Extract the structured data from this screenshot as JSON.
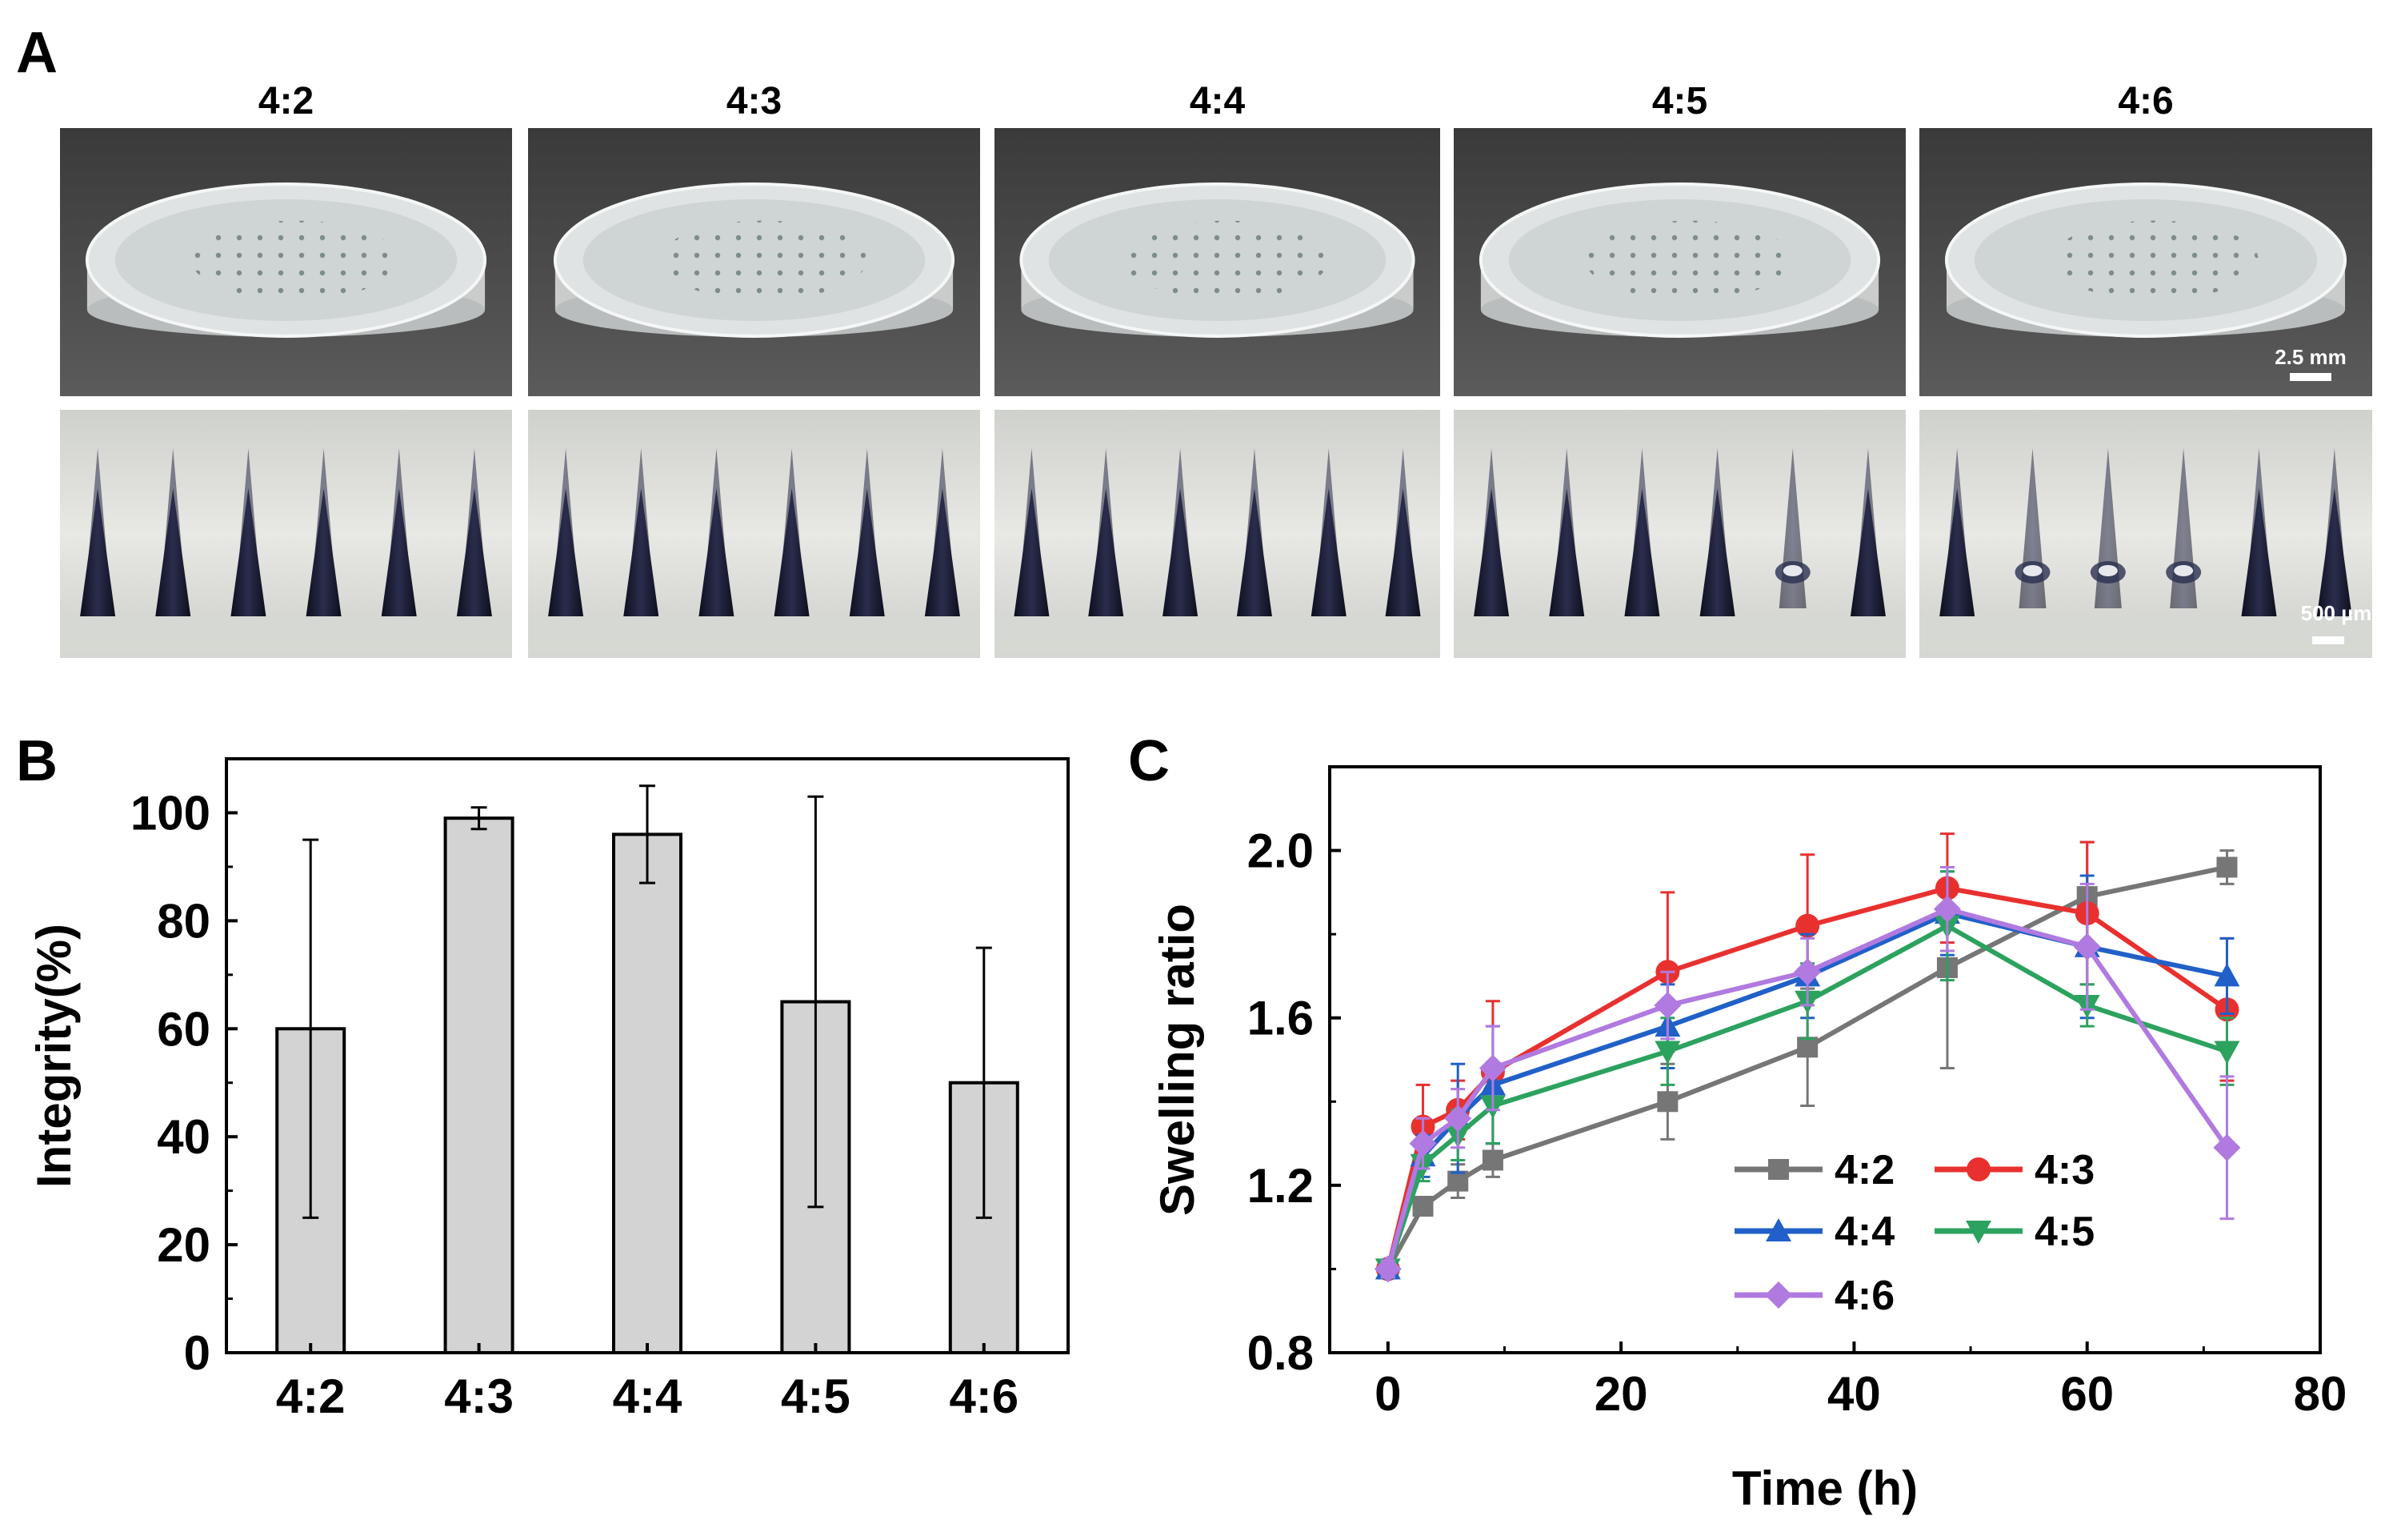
{
  "panel_labels": {
    "a": "A",
    "b": "B",
    "c": "C"
  },
  "photos": {
    "ratios": [
      "4:2",
      "4:3",
      "4:4",
      "4:5",
      "4:6"
    ],
    "top_row_description": "hydrogel patch side view",
    "bottom_row_description": "microneedle close-up",
    "scale_bar_top": "2.5 mm",
    "scale_bar_bottom": "500 µm"
  },
  "chart_data": [
    {
      "id": "B",
      "type": "bar",
      "title": "",
      "categories": [
        "4:2",
        "4:3",
        "4:4",
        "4:5",
        "4:6"
      ],
      "values": [
        60,
        99,
        96,
        65,
        50
      ],
      "errors": [
        35,
        2,
        9,
        38,
        25
      ],
      "xlabel": "",
      "ylabel": "Integrity(%)",
      "ylim": [
        0,
        110
      ],
      "yticks": [
        0,
        20,
        40,
        60,
        80,
        100
      ],
      "grid": false,
      "bar_color": "#d3d3d3"
    },
    {
      "id": "C",
      "type": "line",
      "title": "",
      "xlabel": "Time (h)",
      "ylabel": "Swelling ratio",
      "xlim": [
        -5,
        80
      ],
      "ylim": [
        0.8,
        2.2
      ],
      "xticks": [
        0,
        20,
        40,
        60,
        80
      ],
      "yticks": [
        0.8,
        1.2,
        1.6,
        2.0
      ],
      "x": [
        0,
        3,
        6,
        9,
        24,
        36,
        48,
        60,
        72
      ],
      "legend_position": "bottom-center",
      "series": [
        {
          "name": "4:2",
          "color": "#767676",
          "marker": "square",
          "values": [
            1.0,
            1.15,
            1.21,
            1.26,
            1.4,
            1.53,
            1.72,
            1.89,
            1.96
          ],
          "errors": [
            0.02,
            0.02,
            0.04,
            0.04,
            0.09,
            0.14,
            0.24,
            0.13,
            0.04
          ]
        },
        {
          "name": "4:3",
          "color": "#e8312f",
          "marker": "circle",
          "values": [
            1.0,
            1.34,
            1.38,
            1.47,
            1.71,
            1.82,
            1.91,
            1.85,
            1.62
          ],
          "errors": [
            0.02,
            0.1,
            0.07,
            0.17,
            0.19,
            0.17,
            0.13,
            0.17,
            0.17
          ]
        },
        {
          "name": "4:4",
          "color": "#2060c8",
          "marker": "triangle-up",
          "values": [
            1.0,
            1.27,
            1.36,
            1.44,
            1.58,
            1.7,
            1.85,
            1.77,
            1.7
          ],
          "errors": [
            0.02,
            0.05,
            0.13,
            0.14,
            0.1,
            0.1,
            0.1,
            0.17,
            0.09
          ]
        },
        {
          "name": "4:5",
          "color": "#2ca25f",
          "marker": "triangle-down",
          "values": [
            1.0,
            1.25,
            1.32,
            1.39,
            1.52,
            1.64,
            1.82,
            1.63,
            1.52
          ],
          "errors": [
            0.02,
            0.04,
            0.06,
            0.09,
            0.08,
            0.09,
            0.13,
            0.05,
            0.08
          ]
        },
        {
          "name": "4:6",
          "color": "#b07ae0",
          "marker": "diamond",
          "values": [
            1.0,
            1.3,
            1.36,
            1.48,
            1.63,
            1.71,
            1.86,
            1.77,
            1.29
          ],
          "errors": [
            0.02,
            0.06,
            0.07,
            0.1,
            0.08,
            0.08,
            0.1,
            0.15,
            0.17
          ]
        }
      ]
    }
  ]
}
